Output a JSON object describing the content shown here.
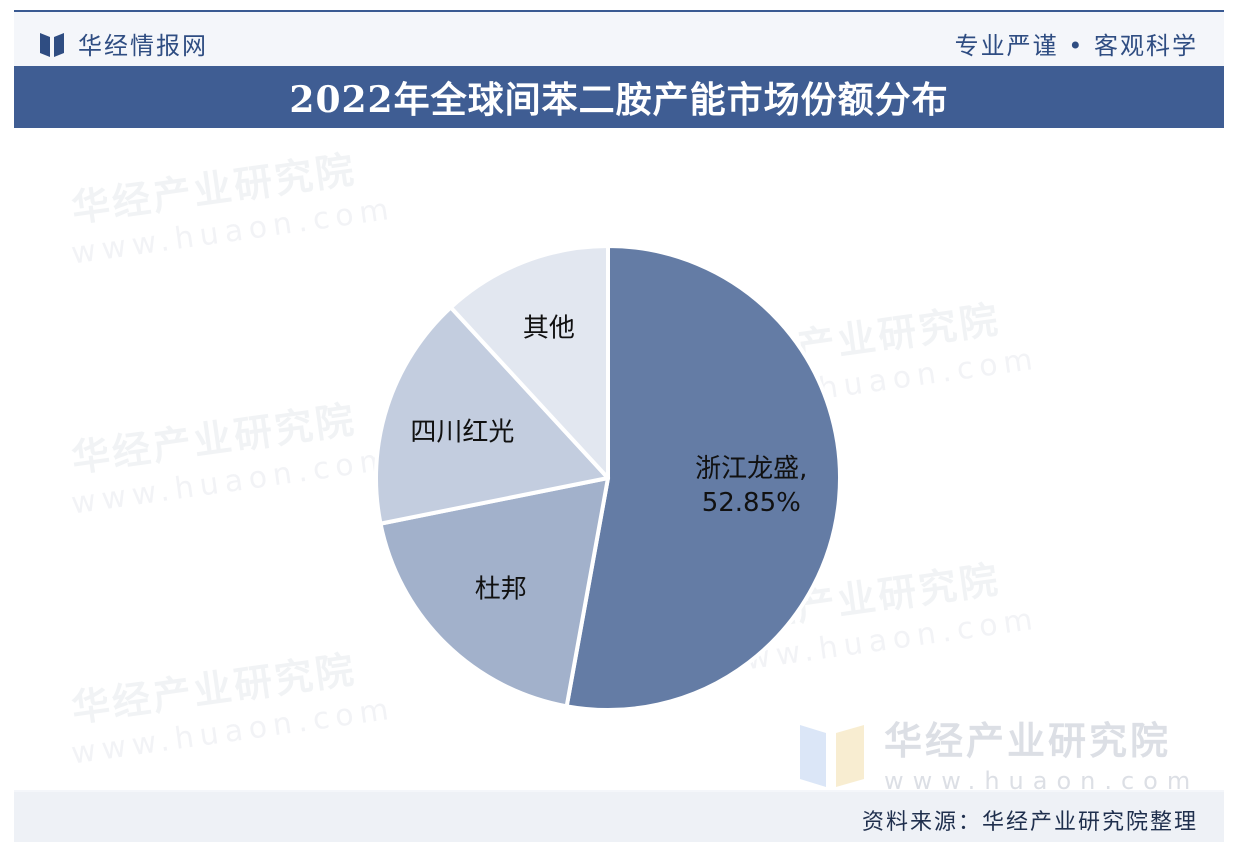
{
  "header": {
    "brand": "华经情报网",
    "slogan": "专业严谨 • 客观科学"
  },
  "colors": {
    "brand_blue": "#3f5d93",
    "slice_1": "#647ca5",
    "slice_2": "#a2b1cb",
    "slice_3": "#c3cddf",
    "slice_4": "#e2e7f0"
  },
  "watermark": {
    "name": "华经产业研究院",
    "url": "www.huaon.com"
  },
  "chart_data": {
    "type": "pie",
    "title": "2022年全球间苯二胺产能市场份额分布",
    "start": "12 o'clock",
    "direction": "clockwise",
    "slices": [
      {
        "label": "浙江龙盛",
        "value": 52.85,
        "value_label": "52.85%",
        "color": "#647ca5"
      },
      {
        "label": "杜邦",
        "value": 19.0,
        "value_label": "",
        "color": "#a2b1cb"
      },
      {
        "label": "四川红光",
        "value": 16.3,
        "value_label": "",
        "color": "#c3cddf"
      },
      {
        "label": "其他",
        "value": 11.85,
        "value_label": "",
        "color": "#e2e7f0"
      }
    ]
  },
  "footer": {
    "source": "资料来源：华经产业研究院整理"
  }
}
